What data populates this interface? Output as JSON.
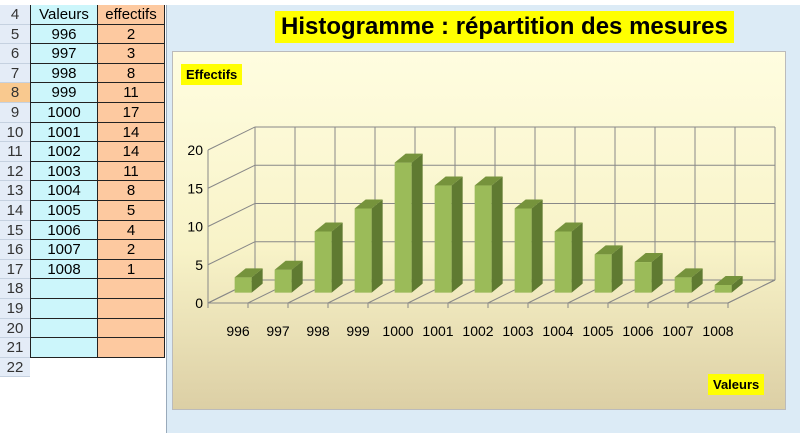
{
  "table": {
    "header_row": "4",
    "headers": [
      "Valeurs",
      "effectifs"
    ],
    "rows": [
      {
        "row": "5",
        "valeur": "996",
        "effectif": "2"
      },
      {
        "row": "6",
        "valeur": "997",
        "effectif": "3"
      },
      {
        "row": "7",
        "valeur": "998",
        "effectif": "8"
      },
      {
        "row": "8",
        "valeur": "999",
        "effectif": "11"
      },
      {
        "row": "9",
        "valeur": "1000",
        "effectif": "17"
      },
      {
        "row": "10",
        "valeur": "1001",
        "effectif": "14"
      },
      {
        "row": "11",
        "valeur": "1002",
        "effectif": "14"
      },
      {
        "row": "12",
        "valeur": "1003",
        "effectif": "11"
      },
      {
        "row": "13",
        "valeur": "1004",
        "effectif": "8"
      },
      {
        "row": "14",
        "valeur": "1005",
        "effectif": "5"
      },
      {
        "row": "15",
        "valeur": "1006",
        "effectif": "4"
      },
      {
        "row": "16",
        "valeur": "1007",
        "effectif": "2"
      },
      {
        "row": "17",
        "valeur": "1008",
        "effectif": "1"
      }
    ],
    "empty_rows": [
      "18",
      "19",
      "20",
      "21",
      "22"
    ],
    "selected_row": "8"
  },
  "chart_data": {
    "type": "bar",
    "title": "Histogramme : répartition des mesures",
    "ylabel": "Effectifs",
    "xlabel": "Valeurs",
    "categories": [
      "996",
      "997",
      "998",
      "999",
      "1000",
      "1001",
      "1002",
      "1003",
      "1004",
      "1005",
      "1006",
      "1007",
      "1008"
    ],
    "values": [
      2,
      3,
      8,
      11,
      17,
      14,
      14,
      11,
      8,
      5,
      4,
      2,
      1
    ],
    "ylim": [
      0,
      20
    ],
    "yticks": [
      "0",
      "5",
      "10",
      "15",
      "20"
    ],
    "grid": true,
    "style": "3d",
    "colors": {
      "bar_front": "#9bbb59",
      "bar_side": "#5f7a31",
      "bar_top": "#76933c"
    }
  }
}
